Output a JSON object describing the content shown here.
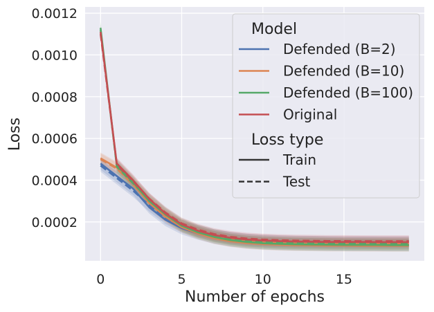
{
  "chart_data": {
    "type": "line",
    "title": "",
    "xlabel": "Number of epochs",
    "ylabel": "Loss",
    "xlim": [
      -0.95,
      19.95
    ],
    "ylim": [
      1.38e-05,
      0.00123
    ],
    "grid": true,
    "x_ticks": [
      0,
      5,
      10,
      15
    ],
    "x_tick_labels": [
      "0",
      "5",
      "10",
      "15"
    ],
    "y_ticks": [
      0.0002,
      0.0004,
      0.0006,
      0.0008,
      0.001,
      0.0012
    ],
    "y_tick_labels": [
      "0.0002",
      "0.0004",
      "0.0006",
      "0.0008",
      "0.0010",
      "0.0012"
    ],
    "x": [
      0,
      1,
      2,
      3,
      4,
      5,
      6,
      7,
      8,
      9,
      10,
      11,
      12,
      13,
      14,
      15,
      16,
      17,
      18,
      19
    ],
    "legend": {
      "placement": "top-right",
      "model_title": "Model",
      "loss_title": "Loss type",
      "style_entries": [
        {
          "label": "Train",
          "dash": "solid"
        },
        {
          "label": "Test",
          "dash": "dashed"
        }
      ]
    },
    "series": [
      {
        "name": "Defended (B=2)",
        "color": "#4c72b0",
        "train": [
          0.00048,
          0.00042,
          0.00036,
          0.00027,
          0.00021,
          0.00017,
          0.000145,
          0.000125,
          0.000112,
          0.000104,
          9.9e-05,
          9.6e-05,
          9.4e-05,
          9.3e-05,
          9.2e-05,
          9.1e-05,
          9.1e-05,
          9e-05,
          9e-05,
          9e-05
        ],
        "test": [
          0.00047,
          0.00041,
          0.00035,
          0.00028,
          0.00022,
          0.00018,
          0.000155,
          0.000135,
          0.000122,
          0.000114,
          0.000109,
          0.000106,
          0.000104,
          0.000103,
          0.000102,
          0.000101,
          0.000101,
          0.000101,
          0.000101,
          0.000101
        ],
        "band": 3e-05
      },
      {
        "name": "Defended (B=10)",
        "color": "#dd8452",
        "train": [
          0.000505,
          0.00046,
          0.000385,
          0.00029,
          0.000225,
          0.000175,
          0.000145,
          0.000122,
          0.000108,
          9.9e-05,
          9.4e-05,
          9.1e-05,
          8.9e-05,
          8.8e-05,
          8.7e-05,
          8.7e-05,
          8.6e-05,
          8.6e-05,
          8.6e-05,
          8.6e-05
        ],
        "test": [
          0.0005,
          0.000455,
          0.00038,
          0.000295,
          0.00023,
          0.000182,
          0.000152,
          0.00013,
          0.000116,
          0.000107,
          0.000102,
          9.9e-05,
          9.7e-05,
          9.6e-05,
          9.5e-05,
          9.5e-05,
          9.4e-05,
          9.4e-05,
          9.4e-05,
          9.4e-05
        ],
        "band": 2.8e-05
      },
      {
        "name": "Defended (B=100)",
        "color": "#55a868",
        "train": [
          0.00113,
          0.00047,
          0.00039,
          0.0003,
          0.000235,
          0.000182,
          0.00015,
          0.000128,
          0.000113,
          0.000104,
          9.8e-05,
          9.5e-05,
          9.3e-05,
          9.2e-05,
          9.1e-05,
          9e-05,
          9e-05,
          9e-05,
          8.9e-05,
          8.9e-05
        ],
        "test": [
          0.00112,
          0.000465,
          0.000385,
          0.000305,
          0.00024,
          0.000188,
          0.000157,
          0.000135,
          0.00012,
          0.000111,
          0.000105,
          0.000102,
          0.0001,
          9.9e-05,
          9.8e-05,
          9.7e-05,
          9.7e-05,
          9.7e-05,
          9.6e-05,
          9.6e-05
        ],
        "band": 3e-05
      },
      {
        "name": "Original",
        "color": "#c44e52",
        "train": [
          0.00111,
          0.00048,
          0.0004,
          0.00031,
          0.00024,
          0.000188,
          0.000158,
          0.000137,
          0.000124,
          0.000116,
          0.000111,
          0.000108,
          0.000106,
          0.000105,
          0.000104,
          0.000104,
          0.000104,
          0.000103,
          0.000103,
          0.000103
        ],
        "test": [
          0.0011,
          0.000475,
          0.000395,
          0.000312,
          0.000245,
          0.000193,
          0.000163,
          0.000142,
          0.000129,
          0.000121,
          0.000116,
          0.000113,
          0.000111,
          0.00011,
          0.000109,
          0.000109,
          0.000108,
          0.000108,
          0.000108,
          0.000108
        ],
        "band": 2.8e-05
      }
    ]
  }
}
